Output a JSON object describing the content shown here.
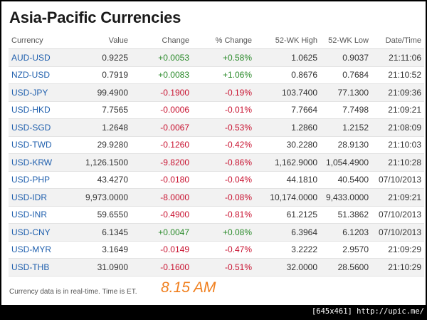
{
  "title": "Asia-Pacific Currencies",
  "columns": [
    "Currency",
    "Value",
    "Change",
    "% Change",
    "52-WK High",
    "52-WK Low",
    "Date/Time"
  ],
  "rows": [
    {
      "currency": "AUD-USD",
      "value": "0.9225",
      "change": "+0.0053",
      "pct": "+0.58%",
      "high": "1.0625",
      "low": "0.9037",
      "time": "21:11:06",
      "dir": "pos"
    },
    {
      "currency": "NZD-USD",
      "value": "0.7919",
      "change": "+0.0083",
      "pct": "+1.06%",
      "high": "0.8676",
      "low": "0.7684",
      "time": "21:10:52",
      "dir": "pos"
    },
    {
      "currency": "USD-JPY",
      "value": "99.4900",
      "change": "-0.1900",
      "pct": "-0.19%",
      "high": "103.7400",
      "low": "77.1300",
      "time": "21:09:36",
      "dir": "neg"
    },
    {
      "currency": "USD-HKD",
      "value": "7.7565",
      "change": "-0.0006",
      "pct": "-0.01%",
      "high": "7.7664",
      "low": "7.7498",
      "time": "21:09:21",
      "dir": "neg"
    },
    {
      "currency": "USD-SGD",
      "value": "1.2648",
      "change": "-0.0067",
      "pct": "-0.53%",
      "high": "1.2860",
      "low": "1.2152",
      "time": "21:08:09",
      "dir": "neg"
    },
    {
      "currency": "USD-TWD",
      "value": "29.9280",
      "change": "-0.1260",
      "pct": "-0.42%",
      "high": "30.2280",
      "low": "28.9130",
      "time": "21:10:03",
      "dir": "neg"
    },
    {
      "currency": "USD-KRW",
      "value": "1,126.1500",
      "change": "-9.8200",
      "pct": "-0.86%",
      "high": "1,162.9000",
      "low": "1,054.4900",
      "time": "21:10:28",
      "dir": "neg"
    },
    {
      "currency": "USD-PHP",
      "value": "43.4270",
      "change": "-0.0180",
      "pct": "-0.04%",
      "high": "44.1810",
      "low": "40.5400",
      "time": "07/10/2013",
      "dir": "neg"
    },
    {
      "currency": "USD-IDR",
      "value": "9,973.0000",
      "change": "-8.0000",
      "pct": "-0.08%",
      "high": "10,174.0000",
      "low": "9,433.0000",
      "time": "21:09:21",
      "dir": "neg"
    },
    {
      "currency": "USD-INR",
      "value": "59.6550",
      "change": "-0.4900",
      "pct": "-0.81%",
      "high": "61.2125",
      "low": "51.3862",
      "time": "07/10/2013",
      "dir": "neg"
    },
    {
      "currency": "USD-CNY",
      "value": "6.1345",
      "change": "+0.0047",
      "pct": "+0.08%",
      "high": "6.3964",
      "low": "6.1203",
      "time": "07/10/2013",
      "dir": "pos"
    },
    {
      "currency": "USD-MYR",
      "value": "3.1649",
      "change": "-0.0149",
      "pct": "-0.47%",
      "high": "3.2222",
      "low": "2.9570",
      "time": "21:09:29",
      "dir": "neg"
    },
    {
      "currency": "USD-THB",
      "value": "31.0900",
      "change": "-0.1600",
      "pct": "-0.51%",
      "high": "32.0000",
      "low": "28.5600",
      "time": "21:10:29",
      "dir": "neg"
    }
  ],
  "footer": {
    "note": "Currency data is in real-time. Time is ET.",
    "time": "8.15 AM"
  },
  "watermark": "[645x461] http://upic.me/",
  "colors": {
    "positive": "#2a8a2a",
    "negative": "#c8102e",
    "link": "#1f5fad",
    "highlight": "#f07f1e"
  }
}
